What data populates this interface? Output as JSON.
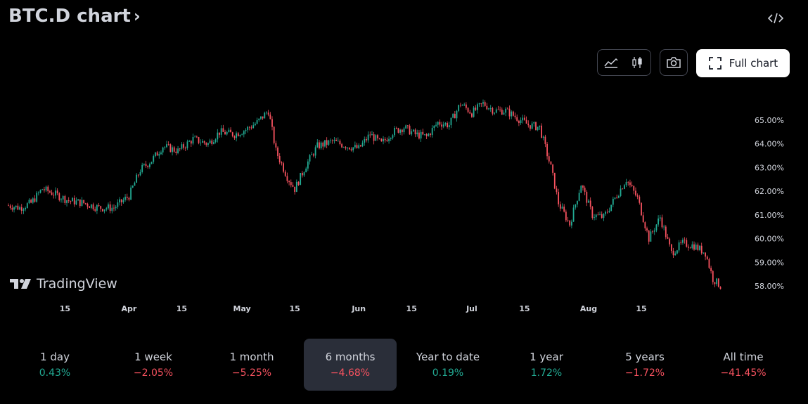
{
  "header": {
    "title": "BTC.D chart",
    "chevron": "›",
    "embed_icon": "code-icon"
  },
  "toolbar": {
    "area_icon": "area-chart-icon",
    "candle_icon": "candlestick-icon",
    "camera_icon": "camera-icon",
    "full_chart_label": "Full chart"
  },
  "brand": {
    "name": "TradingView"
  },
  "colors": {
    "up": "#22ab94",
    "down": "#f7525f",
    "background": "#000000"
  },
  "chart_data": {
    "type": "candlestick",
    "title": "",
    "xlabel": "",
    "ylabel": "",
    "ylim": [
      57.5,
      66.0
    ],
    "y_ticks": [
      "65.00%",
      "64.00%",
      "63.00%",
      "62.00%",
      "61.00%",
      "60.00%",
      "59.00%",
      "58.00%"
    ],
    "y_tick_values": [
      65,
      64,
      63,
      62,
      61,
      60,
      59,
      58
    ],
    "x_ticks": [
      "15",
      "Apr",
      "15",
      "May",
      "15",
      "Jun",
      "15",
      "Jul",
      "15",
      "Aug",
      "15"
    ],
    "x_tick_days": [
      15,
      32,
      46,
      62,
      76,
      93,
      107,
      123,
      137,
      154,
      168
    ],
    "day_range": [
      0,
      196
    ],
    "series": [
      {
        "name": "",
        "points": [
          [
            0,
            61.4
          ],
          [
            3,
            61.3
          ],
          [
            6,
            61.5
          ],
          [
            9,
            62.1
          ],
          [
            12,
            61.9
          ],
          [
            16,
            61.6
          ],
          [
            20,
            61.5
          ],
          [
            24,
            61.3
          ],
          [
            28,
            61.3
          ],
          [
            32,
            61.8
          ],
          [
            35,
            62.9
          ],
          [
            38,
            63.3
          ],
          [
            41,
            63.9
          ],
          [
            45,
            63.7
          ],
          [
            49,
            64.2
          ],
          [
            53,
            64.0
          ],
          [
            56,
            64.5
          ],
          [
            60,
            64.4
          ],
          [
            63,
            64.6
          ],
          [
            66,
            64.9
          ],
          [
            69,
            65.4
          ],
          [
            71,
            63.7
          ],
          [
            74,
            62.6
          ],
          [
            76,
            62.1
          ],
          [
            79,
            63.1
          ],
          [
            82,
            63.9
          ],
          [
            86,
            64.1
          ],
          [
            90,
            63.9
          ],
          [
            93,
            63.8
          ],
          [
            96,
            64.4
          ],
          [
            99,
            64.0
          ],
          [
            102,
            64.5
          ],
          [
            105,
            64.7
          ],
          [
            108,
            64.4
          ],
          [
            111,
            64.3
          ],
          [
            114,
            64.9
          ],
          [
            117,
            64.8
          ],
          [
            120,
            65.7
          ],
          [
            123,
            65.3
          ],
          [
            126,
            65.7
          ],
          [
            129,
            65.4
          ],
          [
            132,
            65.4
          ],
          [
            135,
            65.1
          ],
          [
            138,
            64.8
          ],
          [
            141,
            64.7
          ],
          [
            144,
            63.0
          ],
          [
            146,
            61.5
          ],
          [
            149,
            60.6
          ],
          [
            152,
            62.3
          ],
          [
            155,
            61.0
          ],
          [
            158,
            60.9
          ],
          [
            161,
            61.7
          ],
          [
            164,
            62.5
          ],
          [
            167,
            61.7
          ],
          [
            170,
            60.0
          ],
          [
            173,
            60.9
          ],
          [
            176,
            59.4
          ],
          [
            179,
            59.8
          ],
          [
            182,
            59.7
          ],
          [
            185,
            59.4
          ],
          [
            187,
            58.3
          ],
          [
            189,
            58.0
          ]
        ]
      }
    ],
    "grid": false,
    "legend": "none"
  },
  "ranges": [
    {
      "label": "1 day",
      "change": "0.43%",
      "dir": "up",
      "active": false
    },
    {
      "label": "1 week",
      "change": "−2.05%",
      "dir": "down",
      "active": false
    },
    {
      "label": "1 month",
      "change": "−5.25%",
      "dir": "down",
      "active": false
    },
    {
      "label": "6 months",
      "change": "−4.68%",
      "dir": "down",
      "active": true
    },
    {
      "label": "Year to date",
      "change": "0.19%",
      "dir": "up",
      "active": false
    },
    {
      "label": "1 year",
      "change": "1.72%",
      "dir": "up",
      "active": false
    },
    {
      "label": "5 years",
      "change": "−1.72%",
      "dir": "down",
      "active": false
    },
    {
      "label": "All time",
      "change": "−41.45%",
      "dir": "down",
      "active": false
    }
  ]
}
